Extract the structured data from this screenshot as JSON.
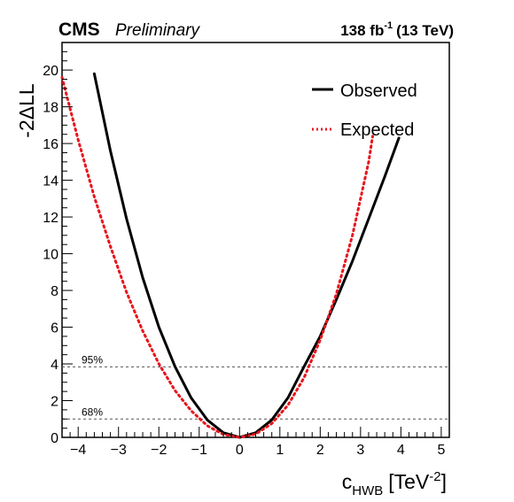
{
  "header": {
    "experiment": "CMS",
    "status": "Preliminary",
    "lumi_value": "138 fb",
    "lumi_exp": "-1",
    "energy": "(13 TeV)"
  },
  "chart_data": {
    "type": "line",
    "xlabel_main": "c",
    "xlabel_sub": "HWB",
    "xlabel_unit_pre": "[TeV",
    "xlabel_unit_exp": "-2",
    "xlabel_unit_post": "]",
    "ylabel": "-2ΔLL",
    "xlim": [
      -4.4,
      5.2
    ],
    "ylim": [
      0,
      21.5
    ],
    "xticks": [
      -4,
      -3,
      -2,
      -1,
      0,
      1,
      2,
      3,
      4,
      5
    ],
    "yticks": [
      0,
      2,
      4,
      6,
      8,
      10,
      12,
      14,
      16,
      18,
      20
    ],
    "xtick_labels": [
      "−4",
      "−3",
      "−2",
      "−1",
      "0",
      "1",
      "2",
      "3",
      "4",
      "5"
    ],
    "ytick_labels": [
      "0",
      "2",
      "4",
      "6",
      "8",
      "10",
      "12",
      "14",
      "16",
      "18",
      "20"
    ],
    "legend_position": "top-right",
    "grid": false,
    "threshold_lines": [
      {
        "label": "95%",
        "y": 3.84
      },
      {
        "label": "68%",
        "y": 1.0
      }
    ],
    "series": [
      {
        "name": "Observed",
        "color": "#000000",
        "style": "solid",
        "x": [
          -3.6,
          -3.2,
          -2.8,
          -2.4,
          -2.0,
          -1.6,
          -1.2,
          -0.8,
          -0.4,
          0.0,
          0.4,
          0.8,
          1.2,
          1.6,
          2.0,
          2.4,
          2.8,
          3.2,
          3.6,
          3.95
        ],
        "y": [
          19.8,
          15.6,
          11.9,
          8.7,
          6.0,
          3.85,
          2.15,
          0.95,
          0.25,
          0.0,
          0.25,
          0.95,
          2.15,
          3.85,
          5.5,
          7.5,
          9.6,
          11.9,
          14.2,
          16.3
        ]
      },
      {
        "name": "Expected",
        "color": "#e8141c",
        "style": "dotted",
        "x": [
          -4.4,
          -4.0,
          -3.6,
          -3.2,
          -2.8,
          -2.4,
          -2.0,
          -1.6,
          -1.2,
          -0.8,
          -0.4,
          0.0,
          0.4,
          0.8,
          1.2,
          1.6,
          2.0,
          2.4,
          2.8,
          3.2,
          3.3
        ],
        "y": [
          19.6,
          16.2,
          13.1,
          10.4,
          7.9,
          5.8,
          4.0,
          2.55,
          1.45,
          0.63,
          0.16,
          0.0,
          0.18,
          0.75,
          1.75,
          3.25,
          5.3,
          7.8,
          11.0,
          15.0,
          16.4
        ]
      }
    ]
  }
}
